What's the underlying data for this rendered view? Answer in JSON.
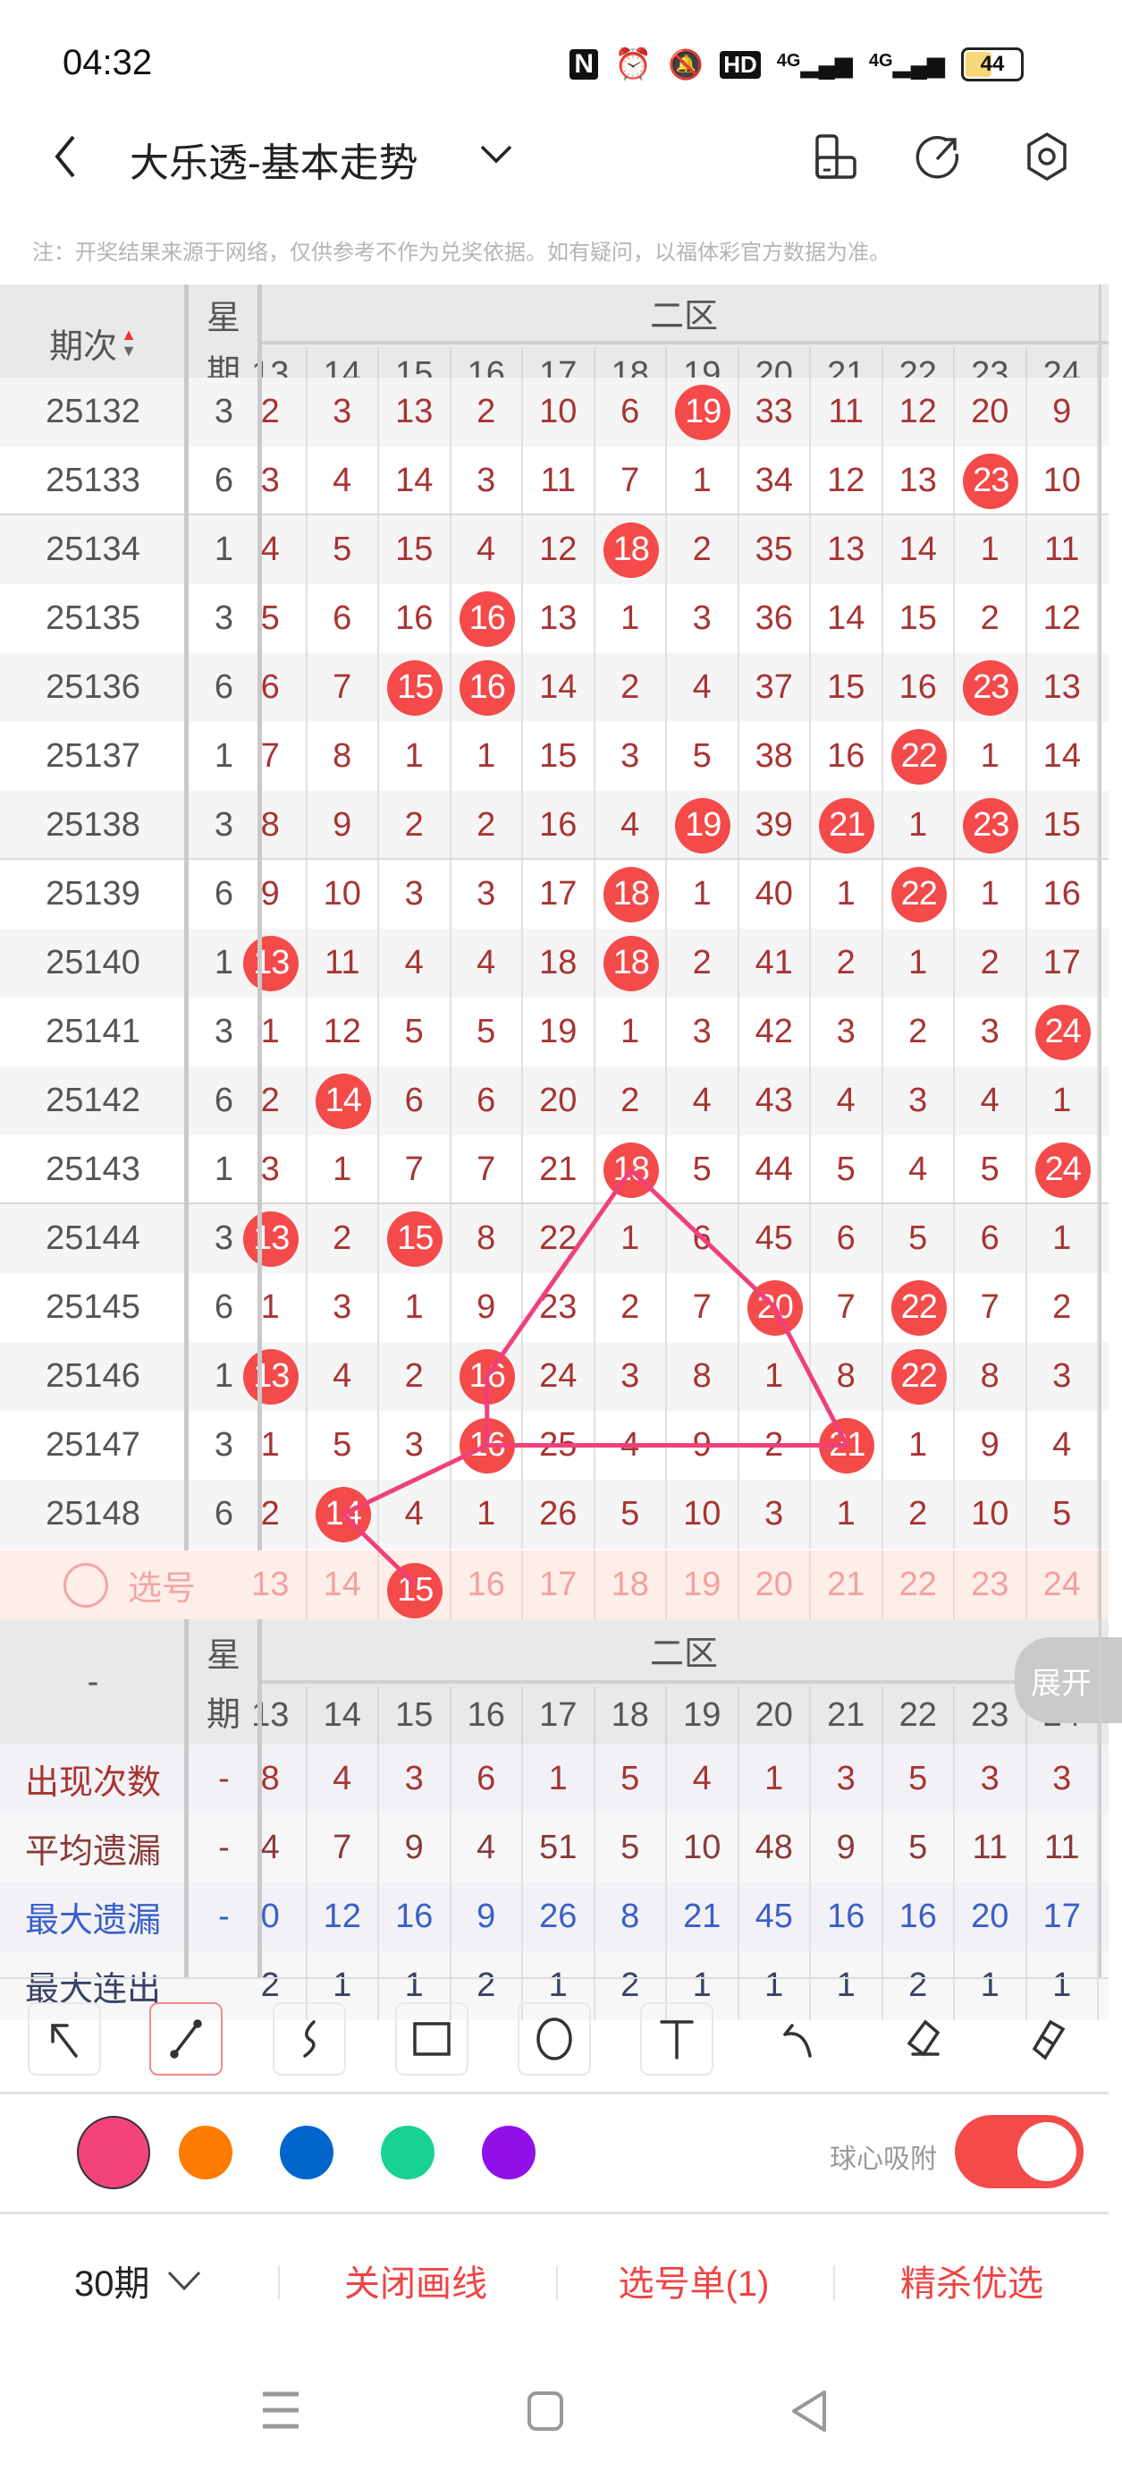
{
  "status_bar": {
    "time": "04:32",
    "battery": "44",
    "network1": "4G",
    "network2": "4G",
    "hd": "HD"
  },
  "header": {
    "title": "大乐透-基本走势"
  },
  "note": "注：开奖结果来源于网络，仅供参考不作为兑奖依据。如有疑问，以福体彩官方数据为准。",
  "table": {
    "period_header": "期次",
    "weekday_header": "星期",
    "zone_header": "二区",
    "columns": [
      "13",
      "14",
      "15",
      "16",
      "17",
      "18",
      "19",
      "20",
      "21",
      "22",
      "23",
      "24"
    ],
    "rows": [
      {
        "period": "25132",
        "weekday": "3",
        "cells": [
          "2",
          "3",
          "13",
          "2",
          "10",
          "6",
          "19",
          "33",
          "11",
          "12",
          "20",
          "9"
        ],
        "hits": [
          "19"
        ]
      },
      {
        "period": "25133",
        "weekday": "6",
        "cells": [
          "3",
          "4",
          "14",
          "3",
          "11",
          "7",
          "1",
          "34",
          "12",
          "13",
          "23",
          "10"
        ],
        "hits": [
          "23"
        ]
      },
      {
        "period": "25134",
        "weekday": "1",
        "cells": [
          "4",
          "5",
          "15",
          "4",
          "12",
          "18",
          "2",
          "35",
          "13",
          "14",
          "1",
          "11"
        ],
        "hits": [
          "18"
        ]
      },
      {
        "period": "25135",
        "weekday": "3",
        "cells": [
          "5",
          "6",
          "16",
          "16",
          "13",
          "1",
          "3",
          "36",
          "14",
          "15",
          "2",
          "12"
        ],
        "hits": [
          "16"
        ]
      },
      {
        "period": "25136",
        "weekday": "6",
        "cells": [
          "6",
          "7",
          "15",
          "16",
          "14",
          "2",
          "4",
          "37",
          "15",
          "16",
          "23",
          "13"
        ],
        "hits": [
          "15",
          "16",
          "23"
        ]
      },
      {
        "period": "25137",
        "weekday": "1",
        "cells": [
          "7",
          "8",
          "1",
          "1",
          "15",
          "3",
          "5",
          "38",
          "16",
          "22",
          "1",
          "14"
        ],
        "hits": [
          "22"
        ]
      },
      {
        "period": "25138",
        "weekday": "3",
        "cells": [
          "8",
          "9",
          "2",
          "2",
          "16",
          "4",
          "19",
          "39",
          "21",
          "1",
          "23",
          "15"
        ],
        "hits": [
          "19",
          "21",
          "23"
        ]
      },
      {
        "period": "25139",
        "weekday": "6",
        "cells": [
          "9",
          "10",
          "3",
          "3",
          "17",
          "18",
          "1",
          "40",
          "1",
          "22",
          "1",
          "16"
        ],
        "hits": [
          "18",
          "22"
        ]
      },
      {
        "period": "25140",
        "weekday": "1",
        "cells": [
          "13",
          "11",
          "4",
          "4",
          "18",
          "18",
          "2",
          "41",
          "2",
          "1",
          "2",
          "17"
        ],
        "hits": [
          "13",
          "18"
        ]
      },
      {
        "period": "25141",
        "weekday": "3",
        "cells": [
          "1",
          "12",
          "5",
          "5",
          "19",
          "1",
          "3",
          "42",
          "3",
          "2",
          "3",
          "24"
        ],
        "hits": [
          "24"
        ]
      },
      {
        "period": "25142",
        "weekday": "6",
        "cells": [
          "2",
          "14",
          "6",
          "6",
          "20",
          "2",
          "4",
          "43",
          "4",
          "3",
          "4",
          "1"
        ],
        "hits": [
          "14"
        ]
      },
      {
        "period": "25143",
        "weekday": "1",
        "cells": [
          "3",
          "1",
          "7",
          "7",
          "21",
          "18",
          "5",
          "44",
          "5",
          "4",
          "5",
          "24"
        ],
        "hits": [
          "18",
          "24"
        ]
      },
      {
        "period": "25144",
        "weekday": "3",
        "cells": [
          "13",
          "2",
          "15",
          "8",
          "22",
          "1",
          "6",
          "45",
          "6",
          "5",
          "6",
          "1"
        ],
        "hits": [
          "13",
          "15"
        ]
      },
      {
        "period": "25145",
        "weekday": "6",
        "cells": [
          "1",
          "3",
          "1",
          "9",
          "23",
          "2",
          "7",
          "20",
          "7",
          "22",
          "7",
          "2"
        ],
        "hits": [
          "20",
          "22"
        ]
      },
      {
        "period": "25146",
        "weekday": "1",
        "cells": [
          "13",
          "4",
          "2",
          "16",
          "24",
          "3",
          "8",
          "1",
          "8",
          "22",
          "8",
          "3"
        ],
        "hits": [
          "13",
          "16",
          "22"
        ]
      },
      {
        "period": "25147",
        "weekday": "3",
        "cells": [
          "1",
          "5",
          "3",
          "16",
          "25",
          "4",
          "9",
          "2",
          "21",
          "1",
          "9",
          "4"
        ],
        "hits": [
          "16",
          "21"
        ]
      },
      {
        "period": "25148",
        "weekday": "6",
        "cells": [
          "2",
          "14",
          "4",
          "1",
          "26",
          "5",
          "10",
          "3",
          "1",
          "2",
          "10",
          "5"
        ],
        "hits": [
          "14"
        ]
      }
    ],
    "pick_row": {
      "label": "选号",
      "selected": [
        "15"
      ]
    },
    "stats_header": {
      "left": "-",
      "weekday": "星期",
      "zone": "二区",
      "expand": "展开"
    },
    "stats": [
      {
        "label": "出现次数",
        "weekday": "-",
        "values": [
          "8",
          "4",
          "3",
          "6",
          "1",
          "5",
          "4",
          "1",
          "3",
          "5",
          "3",
          "3"
        ],
        "color": "#a83434"
      },
      {
        "label": "平均遗漏",
        "weekday": "-",
        "values": [
          "4",
          "7",
          "9",
          "4",
          "51",
          "5",
          "10",
          "48",
          "9",
          "5",
          "11",
          "11"
        ],
        "color": "#8a3a3a"
      },
      {
        "label": "最大遗漏",
        "weekday": "-",
        "values": [
          "0",
          "12",
          "16",
          "9",
          "26",
          "8",
          "21",
          "45",
          "16",
          "16",
          "20",
          "17"
        ],
        "color": "#3a5fc8"
      },
      {
        "label": "最大连出",
        "weekday": "",
        "values": [
          "2",
          "1",
          "1",
          "2",
          "1",
          "2",
          "1",
          "1",
          "1",
          "2",
          "1",
          "1"
        ],
        "color": "#3a4266"
      }
    ]
  },
  "drawing": {
    "color": "#f0407a",
    "polylines": [
      [
        [
          "25143",
          "18"
        ],
        [
          "25146",
          "16"
        ],
        [
          "25147",
          "16"
        ],
        [
          "25147",
          "21"
        ],
        [
          "25145",
          "20"
        ],
        [
          "25143",
          "18"
        ]
      ],
      [
        [
          "25147",
          "16"
        ],
        [
          "25148",
          "14"
        ],
        [
          "pick",
          "15"
        ]
      ]
    ]
  },
  "toolbar": {
    "tools": [
      "arrow-icon",
      "line-icon",
      "freehand-icon",
      "rectangle-icon",
      "circle-icon",
      "text-icon",
      "undo-icon",
      "eraser-icon",
      "clear-icon"
    ],
    "selected_tool": "line-icon",
    "colors": [
      "#f2437a",
      "#ff7a00",
      "#0066cc",
      "#18d291",
      "#9110e8"
    ],
    "selected_color": "#f2437a",
    "snap_label": "球心吸附",
    "snap_on": true,
    "accent": "#f44a4a"
  },
  "bottom_bar": {
    "period_select": "30期",
    "close_drawing": "关闭画线",
    "pick_list": "选号单(1)",
    "refined": "精杀优选"
  }
}
